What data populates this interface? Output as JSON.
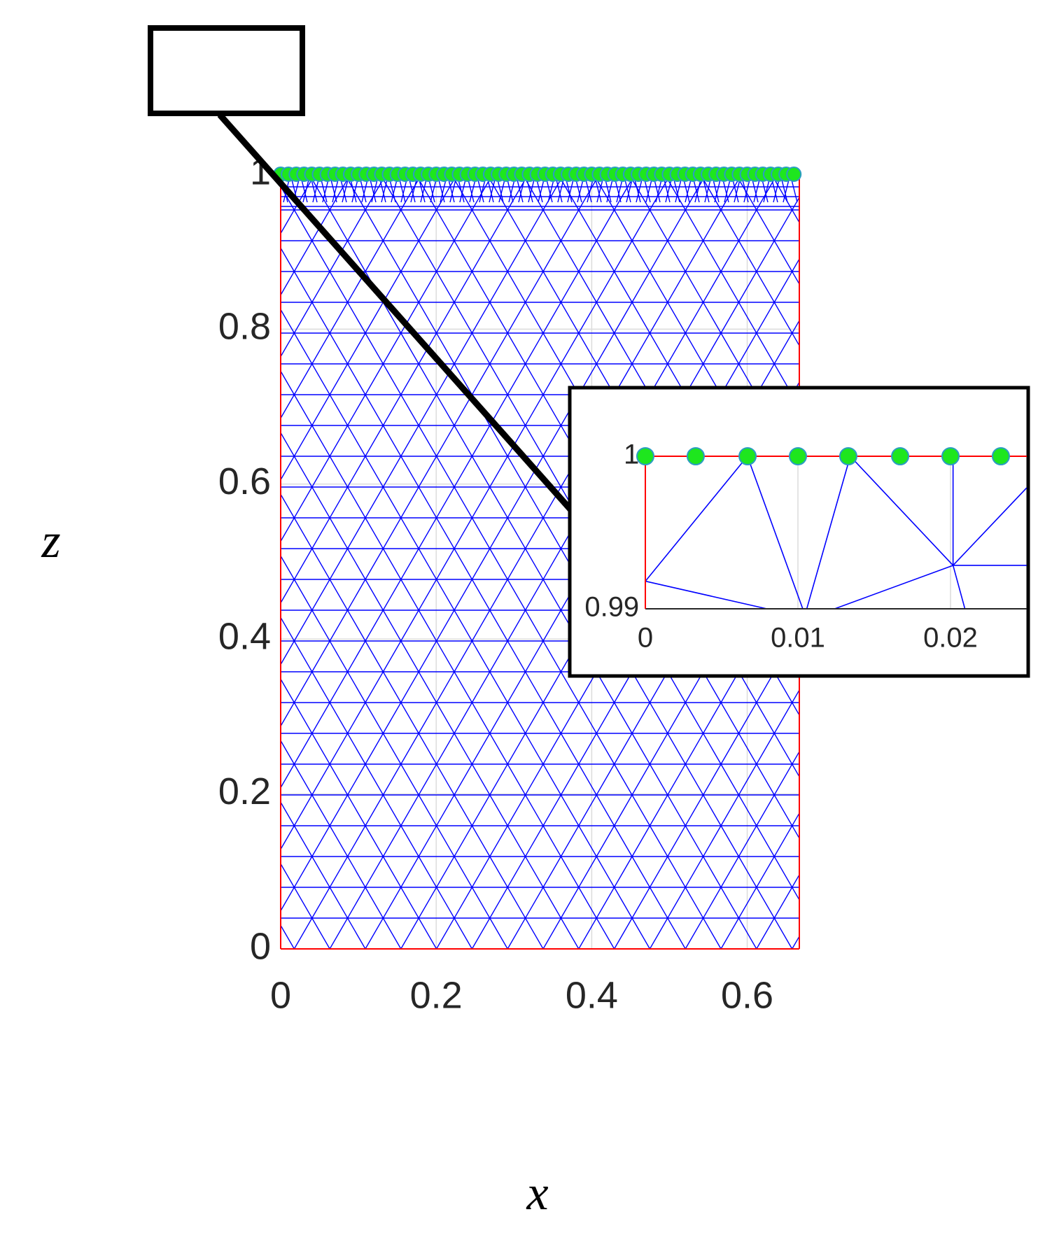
{
  "chart_data": [
    {
      "type": "scatter",
      "xlabel": "x",
      "ylabel": "z",
      "xlim": [
        0,
        0.667
      ],
      "ylim": [
        0,
        1
      ],
      "xticks": [
        0,
        0.2,
        0.4,
        0.6
      ],
      "yticks": [
        0,
        0.2,
        0.4,
        0.6,
        0.8,
        1
      ],
      "grid": true,
      "series": [
        {
          "color": "#1ee61e",
          "edge_color": "#2b9dc2",
          "x": [
            0,
            0.01,
            0.02,
            0.03,
            0.04,
            0.05,
            0.06,
            0.07,
            0.08,
            0.09,
            0.1,
            0.11,
            0.12,
            0.13,
            0.14,
            0.15,
            0.16,
            0.17,
            0.18,
            0.19,
            0.2,
            0.21,
            0.22,
            0.23,
            0.24,
            0.25,
            0.26,
            0.27,
            0.28,
            0.29,
            0.3,
            0.31,
            0.32,
            0.33,
            0.34,
            0.35,
            0.36,
            0.37,
            0.38,
            0.39,
            0.4,
            0.41,
            0.42,
            0.43,
            0.44,
            0.45,
            0.46,
            0.47,
            0.48,
            0.49,
            0.5,
            0.51,
            0.52,
            0.53,
            0.54,
            0.55,
            0.56,
            0.57,
            0.58,
            0.59,
            0.6,
            0.61,
            0.62,
            0.63,
            0.64,
            0.65,
            0.66
          ],
          "values": [
            1,
            1,
            1,
            1,
            1,
            1,
            1,
            1,
            1,
            1,
            1,
            1,
            1,
            1,
            1,
            1,
            1,
            1,
            1,
            1,
            1,
            1,
            1,
            1,
            1,
            1,
            1,
            1,
            1,
            1,
            1,
            1,
            1,
            1,
            1,
            1,
            1,
            1,
            1,
            1,
            1,
            1,
            1,
            1,
            1,
            1,
            1,
            1,
            1,
            1,
            1,
            1,
            1,
            1,
            1,
            1,
            1,
            1,
            1,
            1,
            1,
            1,
            1,
            1,
            1,
            1,
            1
          ]
        }
      ]
    },
    {
      "type": "scatter",
      "xlim": [
        0,
        0.025
      ],
      "ylim": [
        0.99,
        1
      ],
      "xticks": [
        0,
        0.01,
        0.02
      ],
      "yticks": [
        0.99,
        1
      ],
      "grid": true,
      "series": [
        {
          "color": "#1ee61e",
          "edge_color": "#2b9dc2",
          "x": [
            0,
            0.0033,
            0.0067,
            0.01,
            0.0133,
            0.0167,
            0.02,
            0.0233
          ],
          "values": [
            1,
            1,
            1,
            1,
            1,
            1,
            1,
            1
          ]
        }
      ]
    }
  ]
}
